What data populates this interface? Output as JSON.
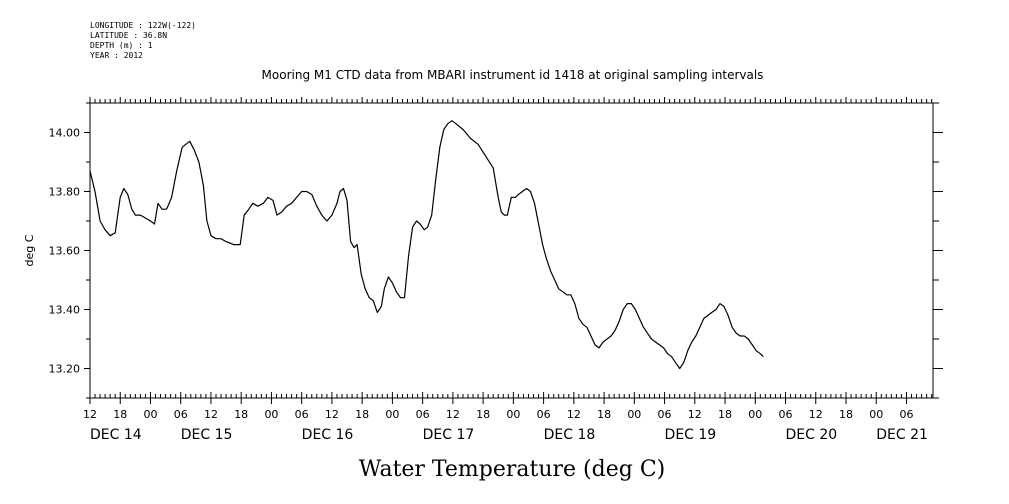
{
  "header": {
    "lines": [
      "LONGITUDE : 122W(-122)",
      "LATITUDE : 36.8N",
      "DEPTH (m) : 1",
      "YEAR : 2012"
    ]
  },
  "chart_data": {
    "type": "line",
    "title": "Mooring M1 CTD data from MBARI instrument id 1418 at original sampling intervals",
    "xlabel": "Water Temperature (deg C)",
    "ylabel": "deg C",
    "ylim": [
      13.1,
      14.1
    ],
    "y_ticks": [
      13.2,
      13.4,
      13.6,
      13.8,
      14.0
    ],
    "y_tick_labels": [
      "13.20",
      "13.40",
      "13.60",
      "13.80",
      "14.00"
    ],
    "x_unit": "hours since 2012-12-14 12:00",
    "xlim": [
      0,
      168
    ],
    "hour_ticks": [
      {
        "x": 0,
        "label": "12"
      },
      {
        "x": 6,
        "label": "18"
      },
      {
        "x": 12,
        "label": "00"
      },
      {
        "x": 18,
        "label": "06"
      },
      {
        "x": 24,
        "label": "12"
      },
      {
        "x": 30,
        "label": "18"
      },
      {
        "x": 36,
        "label": "00"
      },
      {
        "x": 42,
        "label": "06"
      },
      {
        "x": 48,
        "label": "12"
      },
      {
        "x": 54,
        "label": "18"
      },
      {
        "x": 60,
        "label": "00"
      },
      {
        "x": 66,
        "label": "06"
      },
      {
        "x": 72,
        "label": "12"
      },
      {
        "x": 78,
        "label": "18"
      },
      {
        "x": 84,
        "label": "00"
      },
      {
        "x": 90,
        "label": "06"
      },
      {
        "x": 96,
        "label": "12"
      },
      {
        "x": 102,
        "label": "18"
      },
      {
        "x": 108,
        "label": "00"
      },
      {
        "x": 114,
        "label": "06"
      },
      {
        "x": 120,
        "label": "12"
      },
      {
        "x": 126,
        "label": "18"
      },
      {
        "x": 132,
        "label": "00"
      },
      {
        "x": 138,
        "label": "06"
      },
      {
        "x": 144,
        "label": "12"
      },
      {
        "x": 150,
        "label": "18"
      },
      {
        "x": 156,
        "label": "00"
      },
      {
        "x": 162,
        "label": "06"
      }
    ],
    "day_ticks": [
      {
        "x": 0,
        "label": "DEC 14"
      },
      {
        "x": 18,
        "label": "DEC 15"
      },
      {
        "x": 42,
        "label": "DEC 16"
      },
      {
        "x": 66,
        "label": "DEC 17"
      },
      {
        "x": 90,
        "label": "DEC 18"
      },
      {
        "x": 114,
        "label": "DEC 19"
      },
      {
        "x": 138,
        "label": "DEC 20"
      },
      {
        "x": 156,
        "label": "DEC 21"
      }
    ],
    "series": [
      {
        "points": [
          [
            0,
            13.87
          ],
          [
            1,
            13.8
          ],
          [
            2,
            13.7
          ],
          [
            3,
            13.67
          ],
          [
            4,
            13.65
          ],
          [
            5,
            13.66
          ],
          [
            6,
            13.78
          ],
          [
            6.7,
            13.81
          ],
          [
            7.5,
            13.79
          ],
          [
            8.3,
            13.74
          ],
          [
            9,
            13.72
          ],
          [
            10,
            13.72
          ],
          [
            11,
            13.71
          ],
          [
            12,
            13.7
          ],
          [
            12.8,
            13.69
          ],
          [
            13.5,
            13.76
          ],
          [
            14.3,
            13.74
          ],
          [
            15.2,
            13.74
          ],
          [
            16.2,
            13.78
          ],
          [
            17.2,
            13.87
          ],
          [
            18.3,
            13.95
          ],
          [
            19,
            13.96
          ],
          [
            19.8,
            13.97
          ],
          [
            20.7,
            13.94
          ],
          [
            21.6,
            13.9
          ],
          [
            22.5,
            13.82
          ],
          [
            23.2,
            13.7
          ],
          [
            24,
            13.65
          ],
          [
            25,
            13.64
          ],
          [
            26,
            13.64
          ],
          [
            27,
            13.63
          ],
          [
            28.5,
            13.62
          ],
          [
            29.8,
            13.62
          ],
          [
            30.6,
            13.72
          ],
          [
            31.5,
            13.74
          ],
          [
            32.3,
            13.76
          ],
          [
            33.3,
            13.75
          ],
          [
            34.4,
            13.76
          ],
          [
            35.3,
            13.78
          ],
          [
            36.3,
            13.77
          ],
          [
            37.1,
            13.72
          ],
          [
            38,
            13.73
          ],
          [
            39,
            13.75
          ],
          [
            40,
            13.76
          ],
          [
            41,
            13.78
          ],
          [
            42,
            13.8
          ],
          [
            43,
            13.8
          ],
          [
            44,
            13.79
          ],
          [
            45,
            13.75
          ],
          [
            46,
            13.72
          ],
          [
            47,
            13.7
          ],
          [
            48,
            13.72
          ],
          [
            49,
            13.76
          ],
          [
            49.6,
            13.8
          ],
          [
            50.3,
            13.81
          ],
          [
            51,
            13.77
          ],
          [
            51.7,
            13.63
          ],
          [
            52.4,
            13.61
          ],
          [
            53,
            13.62
          ],
          [
            53.8,
            13.52
          ],
          [
            54.6,
            13.47
          ],
          [
            55.4,
            13.44
          ],
          [
            56.2,
            13.43
          ],
          [
            57,
            13.39
          ],
          [
            57.8,
            13.41
          ],
          [
            58.4,
            13.47
          ],
          [
            59.2,
            13.51
          ],
          [
            60,
            13.49
          ],
          [
            60.8,
            13.46
          ],
          [
            61.6,
            13.44
          ],
          [
            62.4,
            13.44
          ],
          [
            63.2,
            13.58
          ],
          [
            64,
            13.68
          ],
          [
            64.8,
            13.7
          ],
          [
            65.5,
            13.69
          ],
          [
            66.3,
            13.67
          ],
          [
            67,
            13.68
          ],
          [
            67.8,
            13.72
          ],
          [
            68.6,
            13.84
          ],
          [
            69.4,
            13.95
          ],
          [
            70.2,
            14.01
          ],
          [
            71,
            14.03
          ],
          [
            71.8,
            14.04
          ],
          [
            72.6,
            14.03
          ],
          [
            74,
            14.01
          ],
          [
            75.5,
            13.98
          ],
          [
            77,
            13.96
          ],
          [
            78.5,
            13.92
          ],
          [
            80,
            13.88
          ],
          [
            80.5,
            13.83
          ],
          [
            81,
            13.78
          ],
          [
            81.6,
            13.73
          ],
          [
            82.2,
            13.72
          ],
          [
            82.8,
            13.72
          ],
          [
            83.6,
            13.78
          ],
          [
            84.4,
            13.78
          ],
          [
            85,
            13.79
          ],
          [
            85.8,
            13.8
          ],
          [
            86.6,
            13.81
          ],
          [
            87.4,
            13.8
          ],
          [
            88.2,
            13.76
          ],
          [
            89,
            13.69
          ],
          [
            89.8,
            13.62
          ],
          [
            90.6,
            13.57
          ],
          [
            91.4,
            13.53
          ],
          [
            92.2,
            13.5
          ],
          [
            93,
            13.47
          ],
          [
            93.8,
            13.46
          ],
          [
            94.6,
            13.45
          ],
          [
            95.4,
            13.45
          ],
          [
            96.2,
            13.42
          ],
          [
            97,
            13.37
          ],
          [
            97.8,
            13.35
          ],
          [
            98.6,
            13.34
          ],
          [
            99.4,
            13.31
          ],
          [
            100.2,
            13.28
          ],
          [
            101,
            13.27
          ],
          [
            101.8,
            13.29
          ],
          [
            102.6,
            13.3
          ],
          [
            103.4,
            13.31
          ],
          [
            104.2,
            13.33
          ],
          [
            105,
            13.36
          ],
          [
            105.8,
            13.4
          ],
          [
            106.6,
            13.42
          ],
          [
            107.4,
            13.42
          ],
          [
            108.2,
            13.4
          ],
          [
            109,
            13.37
          ],
          [
            109.8,
            13.34
          ],
          [
            110.6,
            13.32
          ],
          [
            111.4,
            13.3
          ],
          [
            112.2,
            13.29
          ],
          [
            113,
            13.28
          ],
          [
            113.8,
            13.27
          ],
          [
            114.6,
            13.25
          ],
          [
            115.4,
            13.24
          ],
          [
            116.2,
            13.22
          ],
          [
            117,
            13.2
          ],
          [
            117.8,
            13.22
          ],
          [
            118.6,
            13.26
          ],
          [
            119.4,
            13.29
          ],
          [
            120.2,
            13.31
          ],
          [
            121,
            13.34
          ],
          [
            121.8,
            13.37
          ],
          [
            122.6,
            13.38
          ],
          [
            123.4,
            13.39
          ],
          [
            124.2,
            13.4
          ],
          [
            125,
            13.42
          ],
          [
            125.8,
            13.41
          ],
          [
            126.6,
            13.38
          ],
          [
            127.4,
            13.34
          ],
          [
            128.2,
            13.32
          ],
          [
            129,
            13.31
          ],
          [
            129.8,
            13.31
          ],
          [
            130.6,
            13.3
          ],
          [
            131.4,
            13.28
          ],
          [
            132.2,
            13.26
          ],
          [
            133,
            13.25
          ],
          [
            133.6,
            13.24
          ]
        ]
      }
    ]
  }
}
